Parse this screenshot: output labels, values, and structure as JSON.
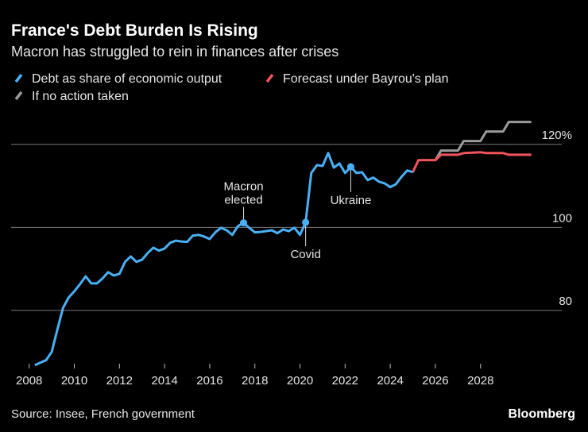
{
  "chart_data": {
    "type": "line",
    "title": "France's Debt Burden Is Rising",
    "subtitle": "Macron has struggled to rein in finances after crises",
    "source": "Source: Insee, French government",
    "brand": "Bloomberg",
    "xlim": [
      2007.2,
      2031.6
    ],
    "xticks": [
      2008,
      2010,
      2012,
      2014,
      2016,
      2018,
      2020,
      2022,
      2024,
      2026,
      2028
    ],
    "ylim": [
      66,
      128
    ],
    "yticks": [
      80,
      100,
      {
        "value": 120,
        "label": "120%"
      }
    ],
    "grid": true,
    "series": [
      {
        "name": "Debt as share of economic output",
        "color": "#4ab0f5",
        "x": [
          2008.25,
          2008.5,
          2008.75,
          2009.0,
          2009.25,
          2009.5,
          2009.75,
          2010.0,
          2010.25,
          2010.5,
          2010.75,
          2011.0,
          2011.25,
          2011.5,
          2011.75,
          2012.0,
          2012.25,
          2012.5,
          2012.75,
          2013.0,
          2013.25,
          2013.5,
          2013.75,
          2014.0,
          2014.25,
          2014.5,
          2014.75,
          2015.0,
          2015.25,
          2015.5,
          2015.75,
          2016.0,
          2016.25,
          2016.5,
          2016.75,
          2017.0,
          2017.25,
          2017.5,
          2017.75,
          2018.0,
          2018.25,
          2018.5,
          2018.75,
          2019.0,
          2019.25,
          2019.5,
          2019.75,
          2020.0,
          2020.25,
          2020.5,
          2020.75,
          2021.0,
          2021.25,
          2021.5,
          2021.75,
          2022.0,
          2022.25,
          2022.5,
          2022.75,
          2023.0,
          2023.25,
          2023.5,
          2023.75,
          2024.0,
          2024.25,
          2024.5,
          2024.75,
          2025.0
        ],
        "values": [
          66.8,
          67.4,
          68.0,
          70.0,
          75.4,
          80.6,
          83.1,
          84.6,
          86.3,
          88.2,
          86.5,
          86.5,
          87.7,
          89.2,
          88.4,
          88.8,
          91.7,
          93.0,
          91.7,
          92.2,
          93.8,
          95.1,
          94.4,
          94.9,
          96.3,
          96.8,
          96.6,
          96.5,
          98.0,
          98.2,
          97.8,
          97.2,
          98.8,
          99.9,
          99.3,
          98.2,
          100.3,
          101.1,
          99.9,
          98.8,
          98.9,
          99.1,
          99.3,
          98.6,
          99.5,
          99.1,
          99.9,
          98.2,
          101.2,
          113.1,
          115.0,
          114.8,
          117.9,
          114.4,
          115.4,
          113.1,
          114.6,
          113.1,
          113.3,
          111.4,
          112.0,
          111.0,
          110.6,
          109.7,
          110.4,
          112.2,
          113.7,
          113.3
        ]
      },
      {
        "name": "Forecast under Bayrou's plan",
        "color": "#f2545b",
        "x": [
          2025.0,
          2025.25,
          2026.0,
          2026.25,
          2027.0,
          2027.25,
          2028.0,
          2028.25,
          2029.0,
          2029.25,
          2030.25
        ],
        "values": [
          113.3,
          116.2,
          116.2,
          117.5,
          117.5,
          117.9,
          118.1,
          117.9,
          117.9,
          117.5,
          117.5
        ]
      },
      {
        "name": "If no action taken",
        "color": "#9a9a9a",
        "x": [
          2026.0,
          2026.25,
          2027.0,
          2027.25,
          2028.0,
          2028.25,
          2029.0,
          2029.25,
          2030.25
        ],
        "values": [
          116.2,
          118.5,
          118.5,
          120.8,
          120.8,
          123.1,
          123.1,
          125.4,
          125.4
        ]
      }
    ],
    "annotations": [
      {
        "text": [
          "Macron",
          "elected"
        ],
        "x": 2017.5,
        "y": 101.1,
        "position": "above"
      },
      {
        "text": [
          "Covid"
        ],
        "x": 2020.25,
        "y": 101.2,
        "position": "below"
      },
      {
        "text": [
          "Ukraine"
        ],
        "x": 2022.25,
        "y": 114.6,
        "position": "below"
      }
    ]
  }
}
